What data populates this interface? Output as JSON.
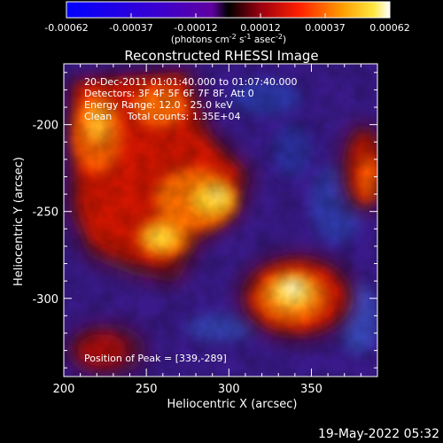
{
  "colorbar": {
    "tick_labels": [
      "-0.00062",
      "-0.00037",
      "-0.00012",
      "0.00012",
      "0.00037",
      "0.00062"
    ],
    "units_prefix": "(photons cm",
    "units_exp1": "-2",
    "units_mid": " s",
    "units_exp2": "-1",
    "units_mid2": " asec",
    "units_exp3": "-2",
    "units_suffix": ")"
  },
  "plot": {
    "title": "Reconstructed RHESSI Image",
    "xlabel": "Heliocentric X (arcsec)",
    "ylabel": "Heliocentric Y (arcsec)",
    "x_ticks": [
      "200",
      "250",
      "300",
      "350"
    ],
    "y_ticks": [
      "-200",
      "-250",
      "-300"
    ],
    "xlim": [
      200,
      390
    ],
    "ylim": [
      -345,
      -165
    ]
  },
  "overlay": {
    "line1": "20-Dec-2011 01:01:40.000 to 01:07:40.000",
    "line2": "Detectors: 3F 4F 5F 6F 7F 8F, Att 0",
    "line3": "Energy Range: 12.0 - 25.0 keV",
    "line4": "Clean     Total counts: 1.35E+04",
    "peak": "Position of Peak = [339,-289]"
  },
  "timestamp": "19-May-2022 05:32"
}
